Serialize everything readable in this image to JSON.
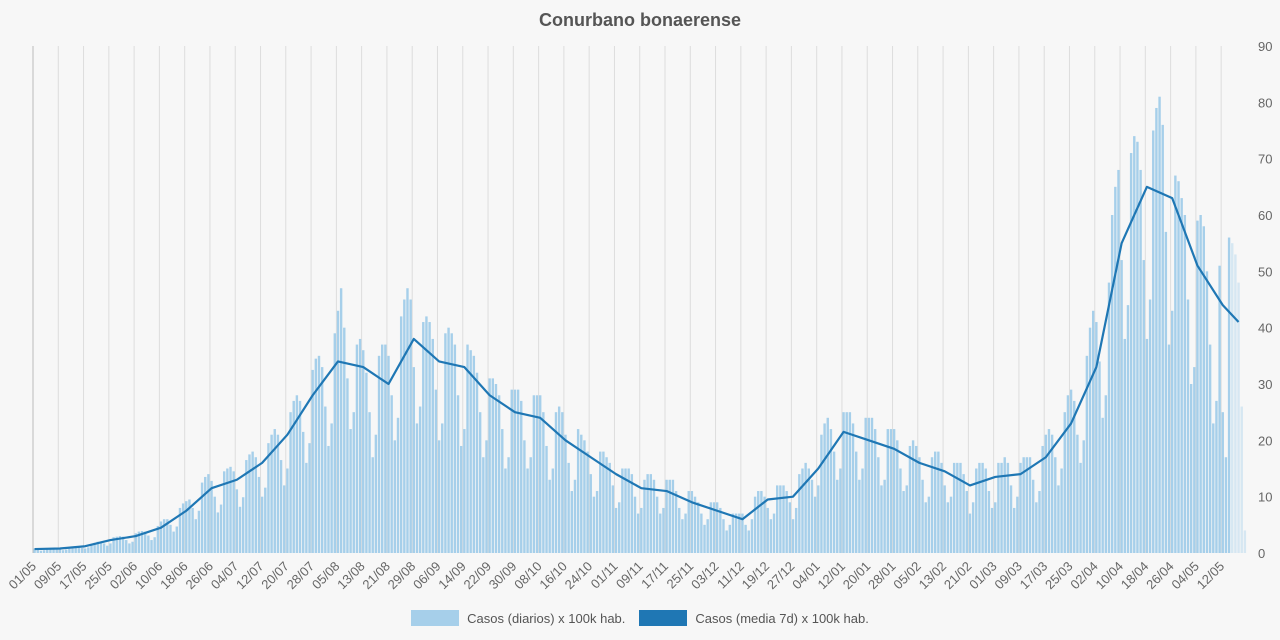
{
  "chart_data": {
    "type": "bar",
    "title": "Conurbano bonaerense",
    "xlabel": "",
    "ylabel": "",
    "ylim": [
      0,
      90
    ],
    "y_ticks": [
      "0",
      "10",
      "20",
      "30",
      "40",
      "50",
      "60",
      "70",
      "80",
      "90"
    ],
    "y_axis_position": "right",
    "grid": "vertical",
    "legend_position": "bottom",
    "x_start": "01/05/2020",
    "x_tick_every_days": 8,
    "x_ticks": [
      "01/05",
      "09/05",
      "17/05",
      "25/05",
      "02/06",
      "10/06",
      "18/06",
      "26/06",
      "04/07",
      "12/07",
      "20/07",
      "28/07",
      "05/08",
      "13/08",
      "21/08",
      "29/08",
      "06/09",
      "14/09",
      "22/09",
      "30/09",
      "08/10",
      "16/10",
      "24/10",
      "01/11",
      "09/11",
      "17/11",
      "25/11",
      "03/12",
      "11/12",
      "19/12",
      "27/12",
      "04/01",
      "12/01",
      "20/01",
      "28/01",
      "05/02",
      "13/02",
      "21/02",
      "01/03",
      "09/03",
      "17/03",
      "25/03",
      "02/04",
      "10/04",
      "18/04",
      "26/04",
      "04/05",
      "12/05"
    ],
    "series": [
      {
        "name": "Casos (diarios) x 100k hab.",
        "type": "bar",
        "color": "#a6cfea",
        "incomplete_last_days": 5,
        "values": [
          0.8,
          0.6,
          0.4,
          0.5,
          0.8,
          0.9,
          0.9,
          0.9,
          0.7,
          0.5,
          0.6,
          1.0,
          1.1,
          1.2,
          1.2,
          0.9,
          0.8,
          1.0,
          1.6,
          1.8,
          2.0,
          2.0,
          1.7,
          1.3,
          1.7,
          2.8,
          2.9,
          3.0,
          2.9,
          2.3,
          1.7,
          2.0,
          3.5,
          3.8,
          3.9,
          3.8,
          3.1,
          2.3,
          2.8,
          4.8,
          5.6,
          6.0,
          6.0,
          5.0,
          3.8,
          4.7,
          8.0,
          8.8,
          9.2,
          9.5,
          8,
          6,
          7.5,
          12.5,
          13.5,
          14,
          12.8,
          10,
          7.2,
          8.6,
          14.5,
          15,
          15.3,
          14.5,
          11.3,
          8.2,
          9.9,
          16.5,
          17.5,
          18,
          17,
          13.5,
          10,
          11.6,
          19.5,
          21,
          22,
          21,
          16.5,
          12,
          15,
          25,
          27,
          28,
          27,
          21.5,
          16,
          19.5,
          32.5,
          34.5,
          35,
          33,
          26,
          19,
          23,
          39,
          43,
          47,
          40,
          31,
          22,
          25,
          37,
          38,
          36,
          32,
          25,
          17,
          21,
          35,
          37,
          37,
          35,
          28,
          20,
          24,
          42,
          45,
          47,
          45,
          33,
          23,
          26,
          41,
          42,
          41,
          38,
          29,
          20,
          23,
          39,
          40,
          39,
          37,
          28,
          19,
          22,
          37,
          36,
          35,
          32,
          25,
          17,
          20,
          31,
          31,
          30,
          28,
          22,
          15,
          17,
          29,
          29,
          29,
          27,
          20,
          15,
          17,
          28,
          28,
          28,
          25,
          19,
          13,
          15,
          25,
          26,
          25,
          21,
          16,
          11,
          13,
          22,
          21,
          20,
          18,
          14,
          10,
          11,
          18,
          18,
          17,
          16,
          12,
          8,
          9,
          15,
          15,
          15,
          14,
          10,
          7,
          8,
          13,
          14,
          14,
          13,
          10,
          7,
          8,
          13,
          13,
          13,
          11,
          8,
          6,
          7,
          11,
          11,
          10,
          9,
          7,
          5,
          6,
          9,
          9,
          9,
          8,
          6,
          4,
          5,
          7,
          7,
          7,
          7,
          5,
          4,
          6,
          10,
          11,
          11,
          10,
          8,
          6,
          7,
          12,
          12,
          12,
          11,
          9,
          6,
          8,
          14,
          15,
          16,
          15,
          13,
          10,
          12,
          21,
          23,
          24,
          22,
          18,
          13,
          15,
          25,
          25,
          25,
          23,
          18,
          13,
          15,
          24,
          24,
          24,
          22,
          17,
          12,
          13,
          22,
          22,
          22,
          20,
          15,
          11,
          12,
          19,
          20,
          19,
          17,
          13,
          9,
          10,
          17,
          18,
          18,
          16,
          12,
          9,
          10,
          16,
          16,
          16,
          14,
          11,
          7,
          9,
          15,
          16,
          16,
          15,
          11,
          8,
          9,
          16,
          16,
          17,
          16,
          12,
          8,
          10,
          16,
          17,
          17,
          17,
          13,
          9,
          11,
          19,
          21,
          22,
          21,
          17,
          12,
          15,
          25,
          28,
          29,
          27,
          21,
          16,
          20,
          35,
          40,
          43,
          41,
          34,
          24,
          28,
          48,
          60,
          65,
          68,
          52,
          38,
          44,
          71,
          74,
          73,
          68,
          52,
          38,
          45,
          75,
          79,
          81,
          76,
          57,
          37,
          43,
          67,
          66,
          63,
          60,
          45,
          30,
          33,
          59,
          60,
          58,
          50,
          37,
          23,
          27,
          51,
          25,
          17,
          56,
          55,
          53,
          48,
          26,
          4
        ]
      },
      {
        "name": "Casos (media 7d) x 100k hab.",
        "type": "line",
        "color": "#1f77b4",
        "sample_every_days": 8,
        "values": [
          0.7,
          0.8,
          1.2,
          2.3,
          3,
          4.5,
          7.5,
          11.5,
          13,
          16,
          21,
          28,
          34,
          33,
          30,
          38,
          34,
          33,
          28,
          25,
          24,
          20,
          17,
          14,
          11.5,
          11,
          9,
          7.5,
          6,
          9.5,
          10,
          15,
          21.5,
          20,
          18.5,
          16,
          14.5,
          12,
          13.5,
          14,
          17,
          23,
          33,
          55,
          65,
          63,
          51,
          44,
          41
        ]
      }
    ]
  }
}
